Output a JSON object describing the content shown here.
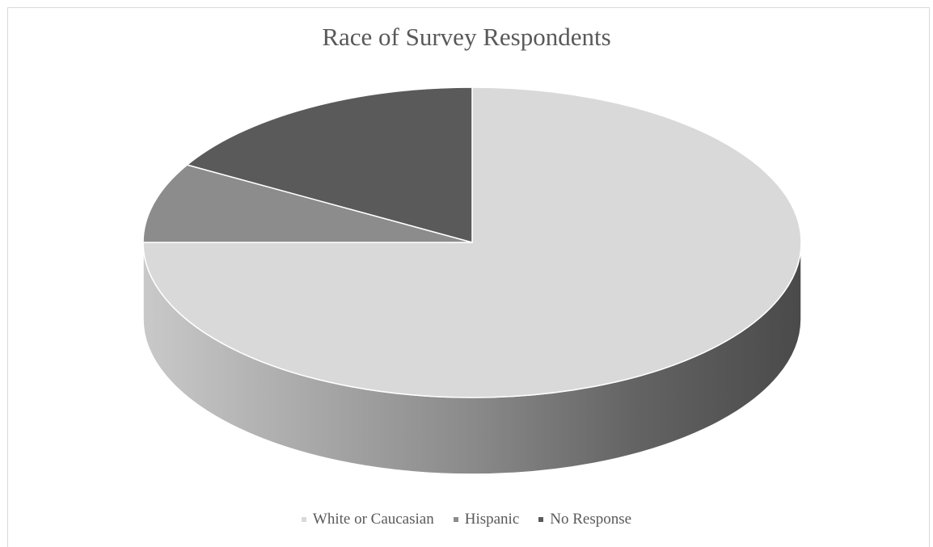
{
  "chart_data": {
    "type": "pie",
    "title": "Race of Survey Respondents",
    "categories": [
      "White or Caucasian",
      "Hispanic",
      "No Response"
    ],
    "values": [
      75,
      8.33,
      16.67
    ],
    "colors": [
      "#d9d9d9",
      "#8c8c8c",
      "#5a5a5a"
    ],
    "three_d": true,
    "legend_position": "bottom"
  }
}
